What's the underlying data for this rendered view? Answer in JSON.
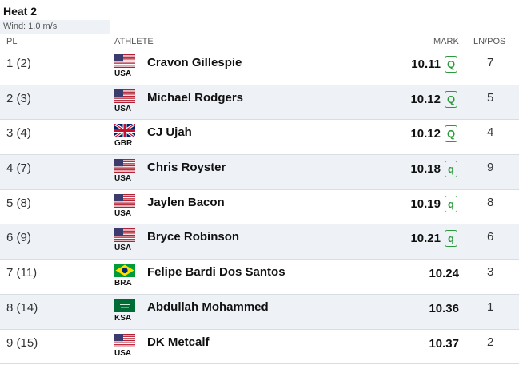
{
  "heat": {
    "title": "Heat 2",
    "wind": "Wind: 1.0 m/s"
  },
  "columns": {
    "pl": "PL",
    "athlete": "ATHLETE",
    "mark": "MARK",
    "lnpos": "LN/POS"
  },
  "rows": [
    {
      "pl": "1 (2)",
      "country": "USA",
      "name": "Cravon Gillespie",
      "mark": "10.11",
      "q": "Q",
      "ln": "7",
      "flag": "usa-flag-icon"
    },
    {
      "pl": "2 (3)",
      "country": "USA",
      "name": "Michael Rodgers",
      "mark": "10.12",
      "q": "Q",
      "ln": "5",
      "flag": "usa-flag-icon"
    },
    {
      "pl": "3 (4)",
      "country": "GBR",
      "name": "CJ Ujah",
      "mark": "10.12",
      "q": "Q",
      "ln": "4",
      "flag": "gbr-flag-icon"
    },
    {
      "pl": "4 (7)",
      "country": "USA",
      "name": "Chris Royster",
      "mark": "10.18",
      "q": "q",
      "ln": "9",
      "flag": "usa-flag-icon"
    },
    {
      "pl": "5 (8)",
      "country": "USA",
      "name": "Jaylen Bacon",
      "mark": "10.19",
      "q": "q",
      "ln": "8",
      "flag": "usa-flag-icon"
    },
    {
      "pl": "6 (9)",
      "country": "USA",
      "name": "Bryce Robinson",
      "mark": "10.21",
      "q": "q",
      "ln": "6",
      "flag": "usa-flag-icon"
    },
    {
      "pl": "7 (11)",
      "country": "BRA",
      "name": "Felipe Bardi Dos Santos",
      "mark": "10.24",
      "q": "",
      "ln": "3",
      "flag": "bra-flag-icon"
    },
    {
      "pl": "8 (14)",
      "country": "KSA",
      "name": "Abdullah Mohammed",
      "mark": "10.36",
      "q": "",
      "ln": "1",
      "flag": "ksa-flag-icon"
    },
    {
      "pl": "9 (15)",
      "country": "USA",
      "name": "DK Metcalf",
      "mark": "10.37",
      "q": "",
      "ln": "2",
      "flag": "usa-flag-icon"
    }
  ],
  "colors": {
    "qualifier": "#2a9a3a",
    "alt_row": "#eef2f7",
    "divider": "#d8dde3"
  }
}
